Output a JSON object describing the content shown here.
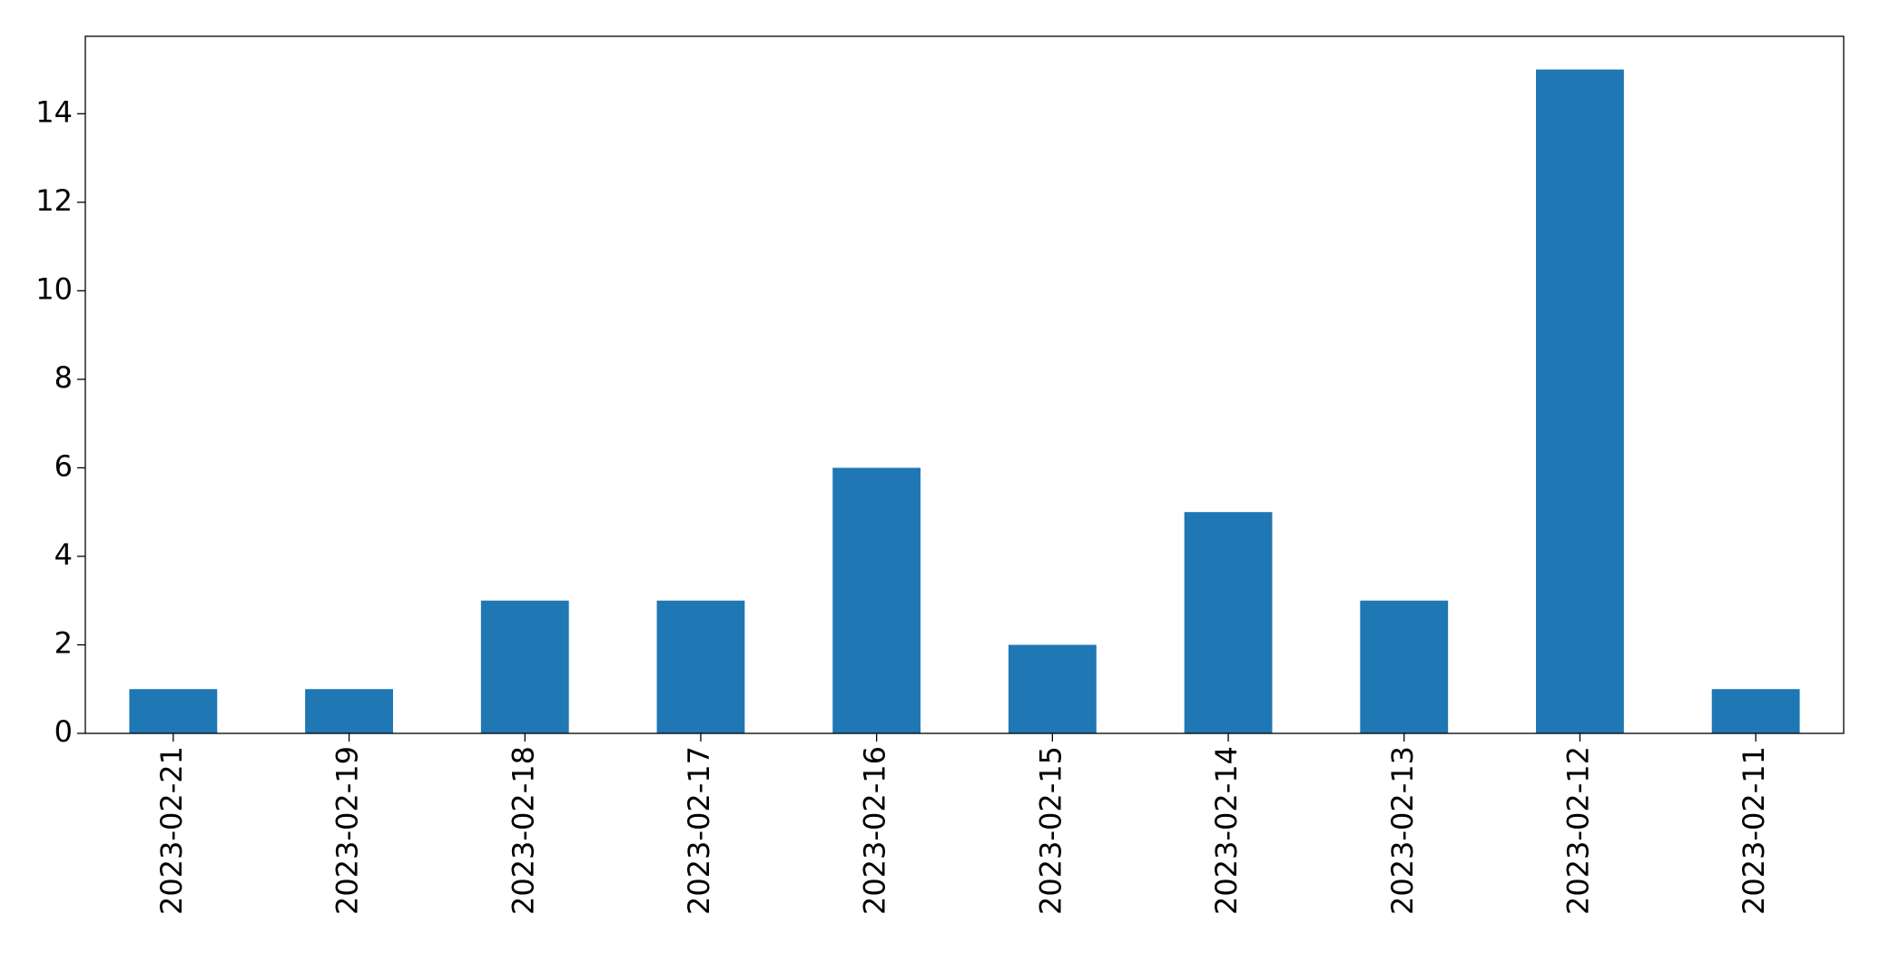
{
  "chart_data": {
    "type": "bar",
    "categories": [
      "2023-02-21",
      "2023-02-19",
      "2023-02-18",
      "2023-02-17",
      "2023-02-16",
      "2023-02-15",
      "2023-02-14",
      "2023-02-13",
      "2023-02-12",
      "2023-02-11"
    ],
    "values": [
      1,
      1,
      3,
      3,
      6,
      2,
      5,
      3,
      15,
      1
    ],
    "color": "#1f77b4",
    "ylim": [
      0,
      15.75
    ],
    "yticks": [
      0,
      2,
      4,
      6,
      8,
      10,
      12,
      14
    ],
    "grid": false
  }
}
